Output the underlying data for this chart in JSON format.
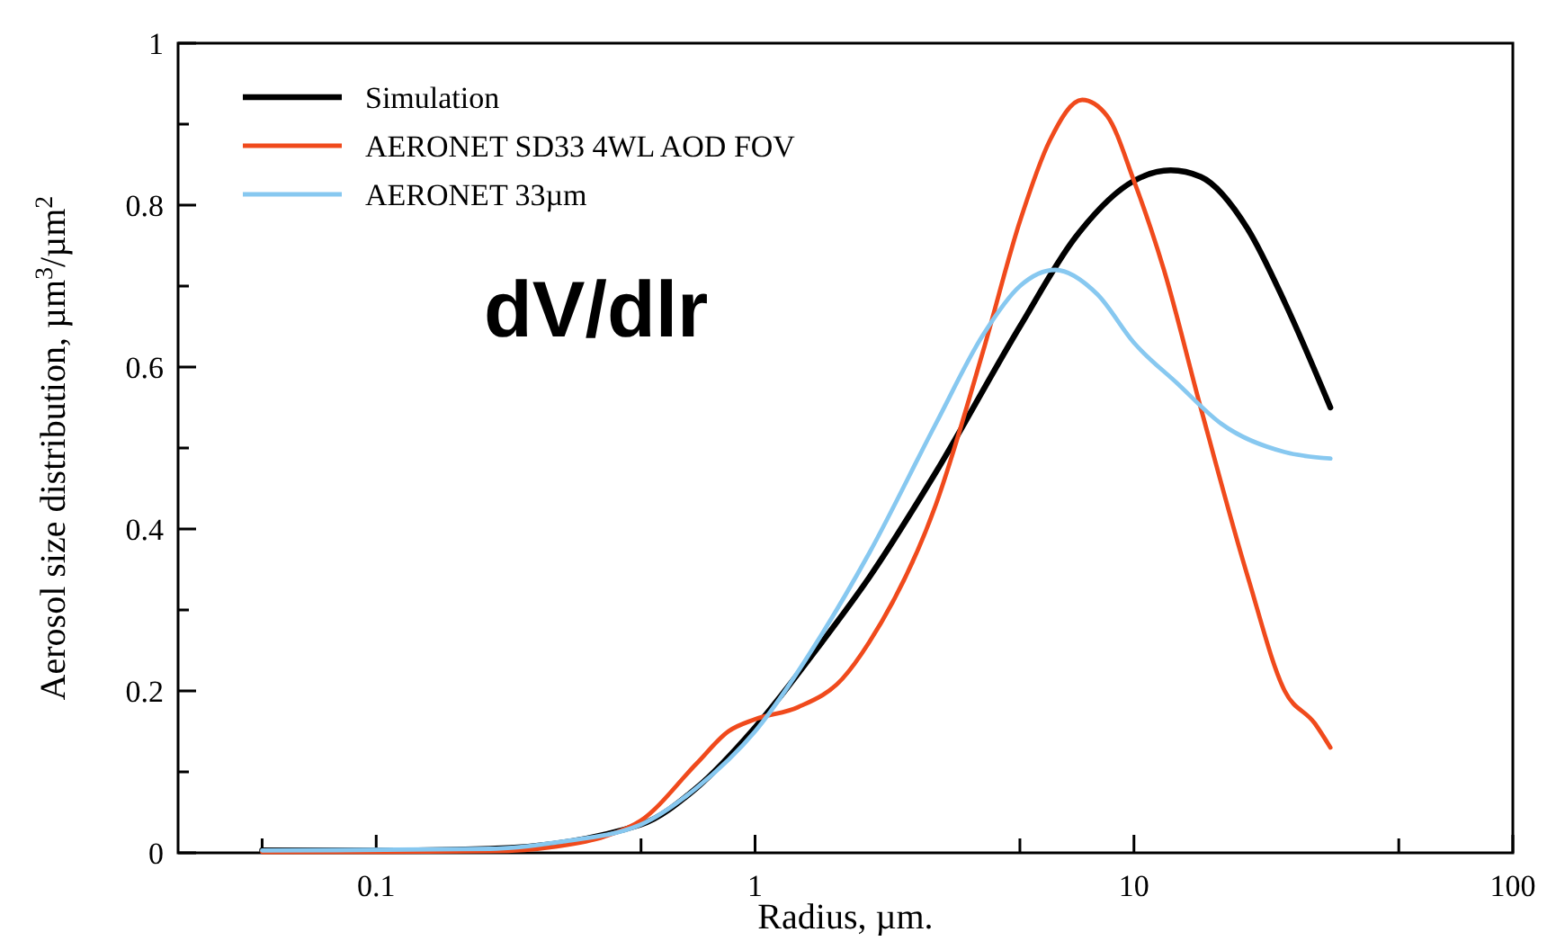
{
  "chart_data": {
    "type": "line",
    "xlabel": "Radius, µm.",
    "ylabel": "Aerosol size distribution, µm$^{3}$/µm$^{2}$",
    "log": "x",
    "xlim": [
      0.03,
      100
    ],
    "ylim": [
      0,
      1
    ],
    "xticks": [
      {
        "value": 0.05,
        "label": null
      },
      0.1,
      {
        "value": 0.5,
        "label": null
      },
      1,
      {
        "value": 5,
        "label": null
      },
      10,
      {
        "value": 50,
        "label": null
      },
      100
    ],
    "yticks": [
      0,
      {
        "value": 0.1,
        "label": null
      },
      0.2,
      {
        "value": 0.3,
        "label": null
      },
      0.4,
      {
        "value": 0.5,
        "label": null
      },
      0.6,
      {
        "value": 0.7,
        "label": null
      },
      0.8,
      {
        "value": 0.9,
        "label": null
      },
      1
    ],
    "grid": false,
    "legend": "top left",
    "annotations": [
      "dV/dlr"
    ],
    "series": [
      {
        "name": "Simulation",
        "color": "#000000",
        "x": [
          0.05,
          0.1,
          0.2,
          0.5,
          0.7,
          1,
          1.5,
          2,
          3,
          5,
          7,
          10,
          12.5,
          15,
          20,
          25,
          33
        ],
        "values": [
          0.003,
          0.003,
          0.005,
          0.035,
          0.08,
          0.155,
          0.26,
          0.34,
          0.47,
          0.65,
          0.76,
          0.83,
          0.843,
          0.835,
          0.77,
          0.68,
          0.55
        ]
      },
      {
        "name": "AERONET SD33 4WL AOD FOV",
        "color": "#f04a1c",
        "x": [
          0.05,
          0.2,
          0.3,
          0.4,
          0.5,
          0.7,
          0.85,
          1,
          1.3,
          1.7,
          2,
          3,
          4,
          5,
          6,
          7.3,
          8.5,
          10,
          12,
          15,
          20,
          25,
          30,
          33
        ],
        "values": [
          0.001,
          0.002,
          0.008,
          0.02,
          0.04,
          0.11,
          0.15,
          0.165,
          0.18,
          0.215,
          0.26,
          0.43,
          0.62,
          0.78,
          0.88,
          0.93,
          0.91,
          0.83,
          0.72,
          0.55,
          0.34,
          0.2,
          0.16,
          0.13
        ]
      },
      {
        "name": "AERONET 33µm",
        "color": "#87c8f0",
        "x": [
          0.05,
          0.2,
          0.3,
          0.5,
          0.7,
          1,
          1.5,
          2,
          3,
          4,
          5,
          6.2,
          8,
          10,
          13,
          17,
          25,
          33
        ],
        "values": [
          0.003,
          0.005,
          0.013,
          0.035,
          0.08,
          0.15,
          0.27,
          0.37,
          0.53,
          0.64,
          0.7,
          0.72,
          0.69,
          0.63,
          0.58,
          0.53,
          0.495,
          0.487
        ]
      }
    ]
  }
}
